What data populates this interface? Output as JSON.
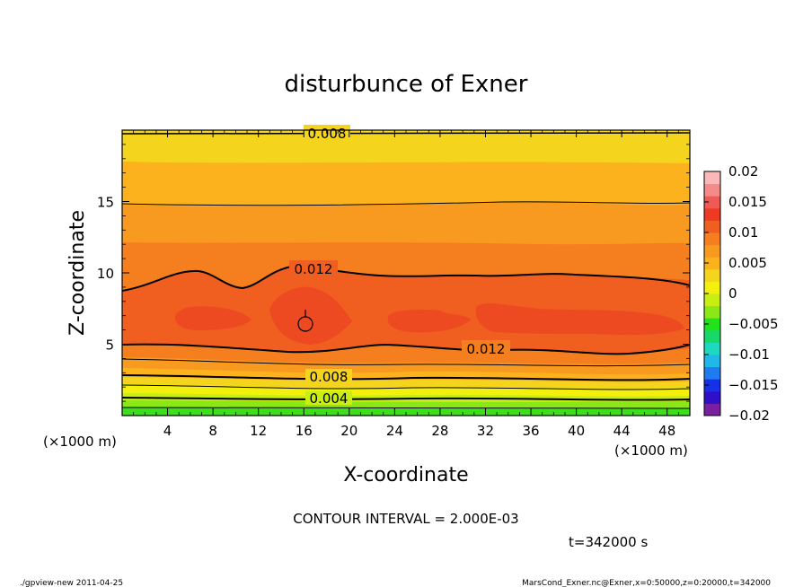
{
  "chart_data": {
    "type": "contour",
    "title": "disturbunce of Exner",
    "xlabel": "X-coordinate",
    "ylabel": "Z-coordinate",
    "x_unit": "(×1000 m)",
    "x_ticks": [
      4,
      8,
      12,
      16,
      20,
      24,
      28,
      32,
      36,
      40,
      44,
      48
    ],
    "y_ticks": [
      5,
      10,
      15
    ],
    "xlim": [
      0,
      50
    ],
    "ylim": [
      0,
      20
    ],
    "colorbar": {
      "ticks": [
        "0.02",
        "0.015",
        "0.01",
        "0.005",
        "0",
        "−0.005",
        "−0.01",
        "−0.015",
        "−0.02"
      ],
      "range": [
        -0.02,
        0.02
      ],
      "step": 0.002
    },
    "contour_labels": [
      {
        "text": "0.008",
        "x": 17.2,
        "z": 19.4
      },
      {
        "text": "0.012",
        "x": 17.0,
        "z": 10.3
      },
      {
        "text": "0.012",
        "x": 32.0,
        "z": 4.6
      },
      {
        "text": "0.008",
        "x": 18.0,
        "z": 2.6
      },
      {
        "text": "0.004",
        "x": 18.0,
        "z": 1.1
      }
    ],
    "max_marker": {
      "x": 16.2,
      "z": 6.6
    },
    "contour_interval_text": "CONTOUR INTERVAL = 2.000E-03",
    "time_text": "t=342000 s",
    "footer_left": "./gpview-new   2011-04-25",
    "footer_right": "MarsCond_Exner.nc@Exner,x=0:50000,z=0:20000,t=342000",
    "colors": {
      "band_top_light": "#FCC61A",
      "band_orange": "#F89C22",
      "band_deep_orange": "#F3741E",
      "band_red_orange": "#EF5520",
      "bottom_yellow": "#F3F70A",
      "bottom_green": "#22E21C"
    }
  }
}
